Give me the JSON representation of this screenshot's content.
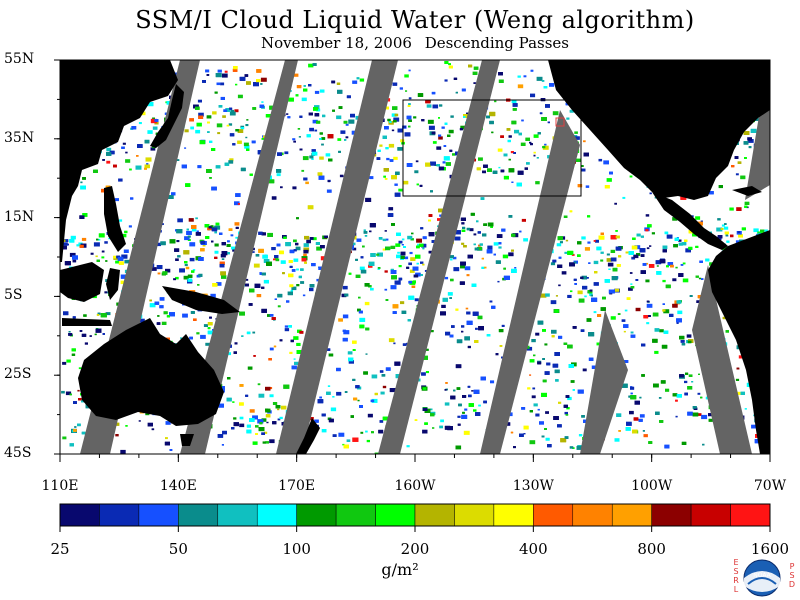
{
  "title": "SSM/I Cloud Liquid Water (Weng algorithm)",
  "subtitle_date": "November 18, 2006",
  "subtitle_pass": "Descending Passes",
  "latitude_labels": [
    {
      "label": "55N",
      "lat": 55
    },
    {
      "label": "35N",
      "lat": 35
    },
    {
      "label": "15N",
      "lat": 15
    },
    {
      "label": "5S",
      "lat": -5
    },
    {
      "label": "25S",
      "lat": -25
    },
    {
      "label": "45S",
      "lat": -45
    }
  ],
  "longitude_labels": [
    {
      "label": "110E",
      "lon": 110
    },
    {
      "label": "140E",
      "lon": 140
    },
    {
      "label": "170E",
      "lon": 170
    },
    {
      "label": "160W",
      "lon": 200
    },
    {
      "label": "130W",
      "lon": 230
    },
    {
      "label": "100W",
      "lon": 260
    },
    {
      "label": "70W",
      "lon": 290
    }
  ],
  "map_extent": {
    "lon_min": 110,
    "lon_max": 290,
    "lat_min": -45,
    "lat_max": 55
  },
  "colorbar": {
    "colors": [
      "#08086e",
      "#0a2ab4",
      "#1650ff",
      "#0a8c8c",
      "#10c0c0",
      "#00ffff",
      "#009a00",
      "#10c810",
      "#00ff00",
      "#b4b400",
      "#dcdc00",
      "#ffff00",
      "#ff5a00",
      "#ff8200",
      "#ffa000",
      "#8c0000",
      "#c80000",
      "#ff1414"
    ],
    "tick_labels": [
      "25",
      "50",
      "100",
      "200",
      "400",
      "800",
      "1600"
    ],
    "units": "g/m²"
  },
  "logo": {
    "left_letters": "ESRL",
    "right_letters": "PSD",
    "emblem_text": "NOAA"
  }
}
